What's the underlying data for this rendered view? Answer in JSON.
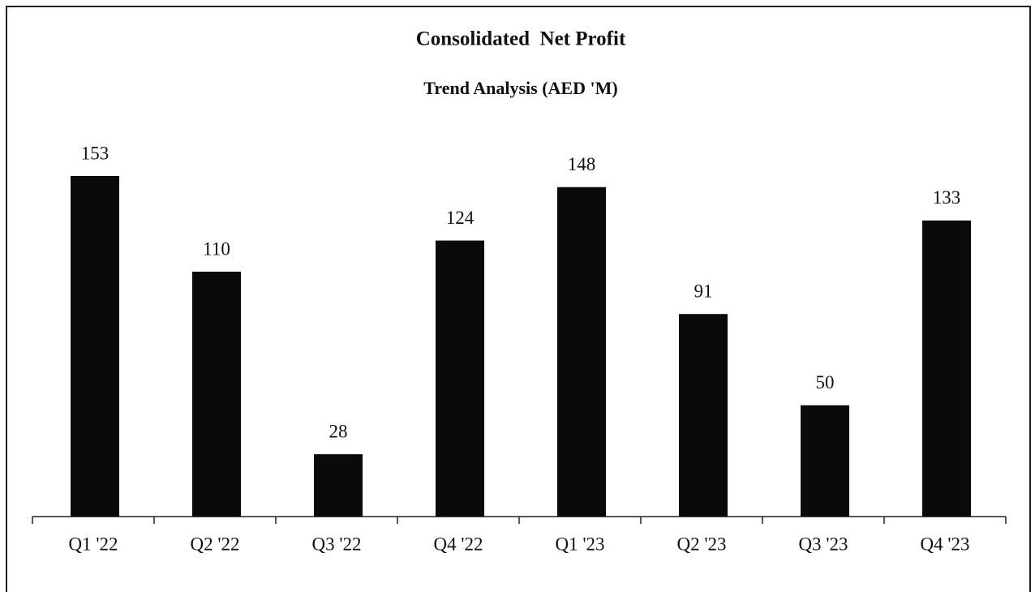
{
  "chart_data": {
    "type": "bar",
    "title": "Consolidated  Net Profit",
    "subtitle": "Trend Analysis (AED 'M)",
    "categories": [
      "Q1 '22",
      "Q2 '22",
      "Q3 '22",
      "Q4 '22",
      "Q1 '23",
      "Q2 '23",
      "Q3 '23",
      "Q4 '23"
    ],
    "values": [
      153,
      110,
      28,
      124,
      148,
      91,
      50,
      133
    ],
    "color": "#0a0a0a"
  }
}
